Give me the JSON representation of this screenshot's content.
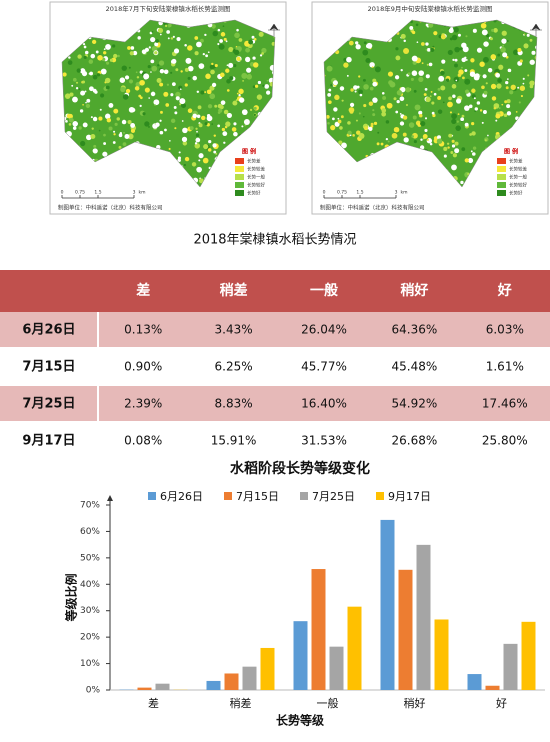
{
  "maps": [
    {
      "title": "2018年7月下旬安陆棠棣镇水稻长势监测图"
    },
    {
      "title": "2018年9月中旬安陆棠棣镇水稻长势监测图"
    }
  ],
  "map_legend": {
    "title": "图 例",
    "items": [
      "长势差",
      "长势较差",
      "长势一般",
      "长势较好",
      "长势好"
    ]
  },
  "map_scale": [
    "0",
    "0.75",
    "1.5",
    "3",
    "km"
  ],
  "map_credit": "制图单位：中科遥诺（北京）科技有限公司",
  "caption": "2018年棠棣镇水稻长势情况",
  "table": {
    "columns": [
      "差",
      "稍差",
      "一般",
      "稍好",
      "好"
    ],
    "rows": [
      [
        "6月26日",
        "0.13%",
        "3.43%",
        "26.04%",
        "64.36%",
        "6.03%"
      ],
      [
        "7月15日",
        "0.90%",
        "6.25%",
        "45.77%",
        "45.48%",
        "1.61%"
      ],
      [
        "7月25日",
        "2.39%",
        "8.83%",
        "16.40%",
        "54.92%",
        "17.46%"
      ],
      [
        "9月17日",
        "0.08%",
        "15.91%",
        "31.53%",
        "26.68%",
        "25.80%"
      ]
    ]
  },
  "chart_data": {
    "type": "bar",
    "title": "水稻阶段长势等级变化",
    "x_label": "长势等级",
    "y_label": "等级比例",
    "categories": [
      "差",
      "稍差",
      "一般",
      "稍好",
      "好"
    ],
    "series": [
      {
        "name": "6月26日",
        "color": "#5b9bd5",
        "values": [
          0.13,
          3.43,
          26.04,
          64.36,
          6.03
        ]
      },
      {
        "name": "7月15日",
        "color": "#ed7d31",
        "values": [
          0.9,
          6.25,
          45.77,
          45.48,
          1.61
        ]
      },
      {
        "name": "7月25日",
        "color": "#a5a5a5",
        "values": [
          2.39,
          8.83,
          16.4,
          54.92,
          17.46
        ]
      },
      {
        "name": "9月17日",
        "color": "#ffc000",
        "values": [
          0.08,
          15.91,
          31.53,
          26.68,
          25.8
        ]
      }
    ],
    "ylim": [
      0,
      70
    ],
    "yticks": [
      {
        "value": 0,
        "label": "0%"
      },
      {
        "value": 10,
        "label": "10%"
      },
      {
        "value": 20,
        "label": "20%"
      },
      {
        "value": 30,
        "label": "30%"
      },
      {
        "value": 40,
        "label": "40%"
      },
      {
        "value": 50,
        "label": "50%"
      },
      {
        "value": 60,
        "label": "60%"
      },
      {
        "value": 70,
        "label": "70%"
      }
    ],
    "legend": "top",
    "grid": false
  }
}
